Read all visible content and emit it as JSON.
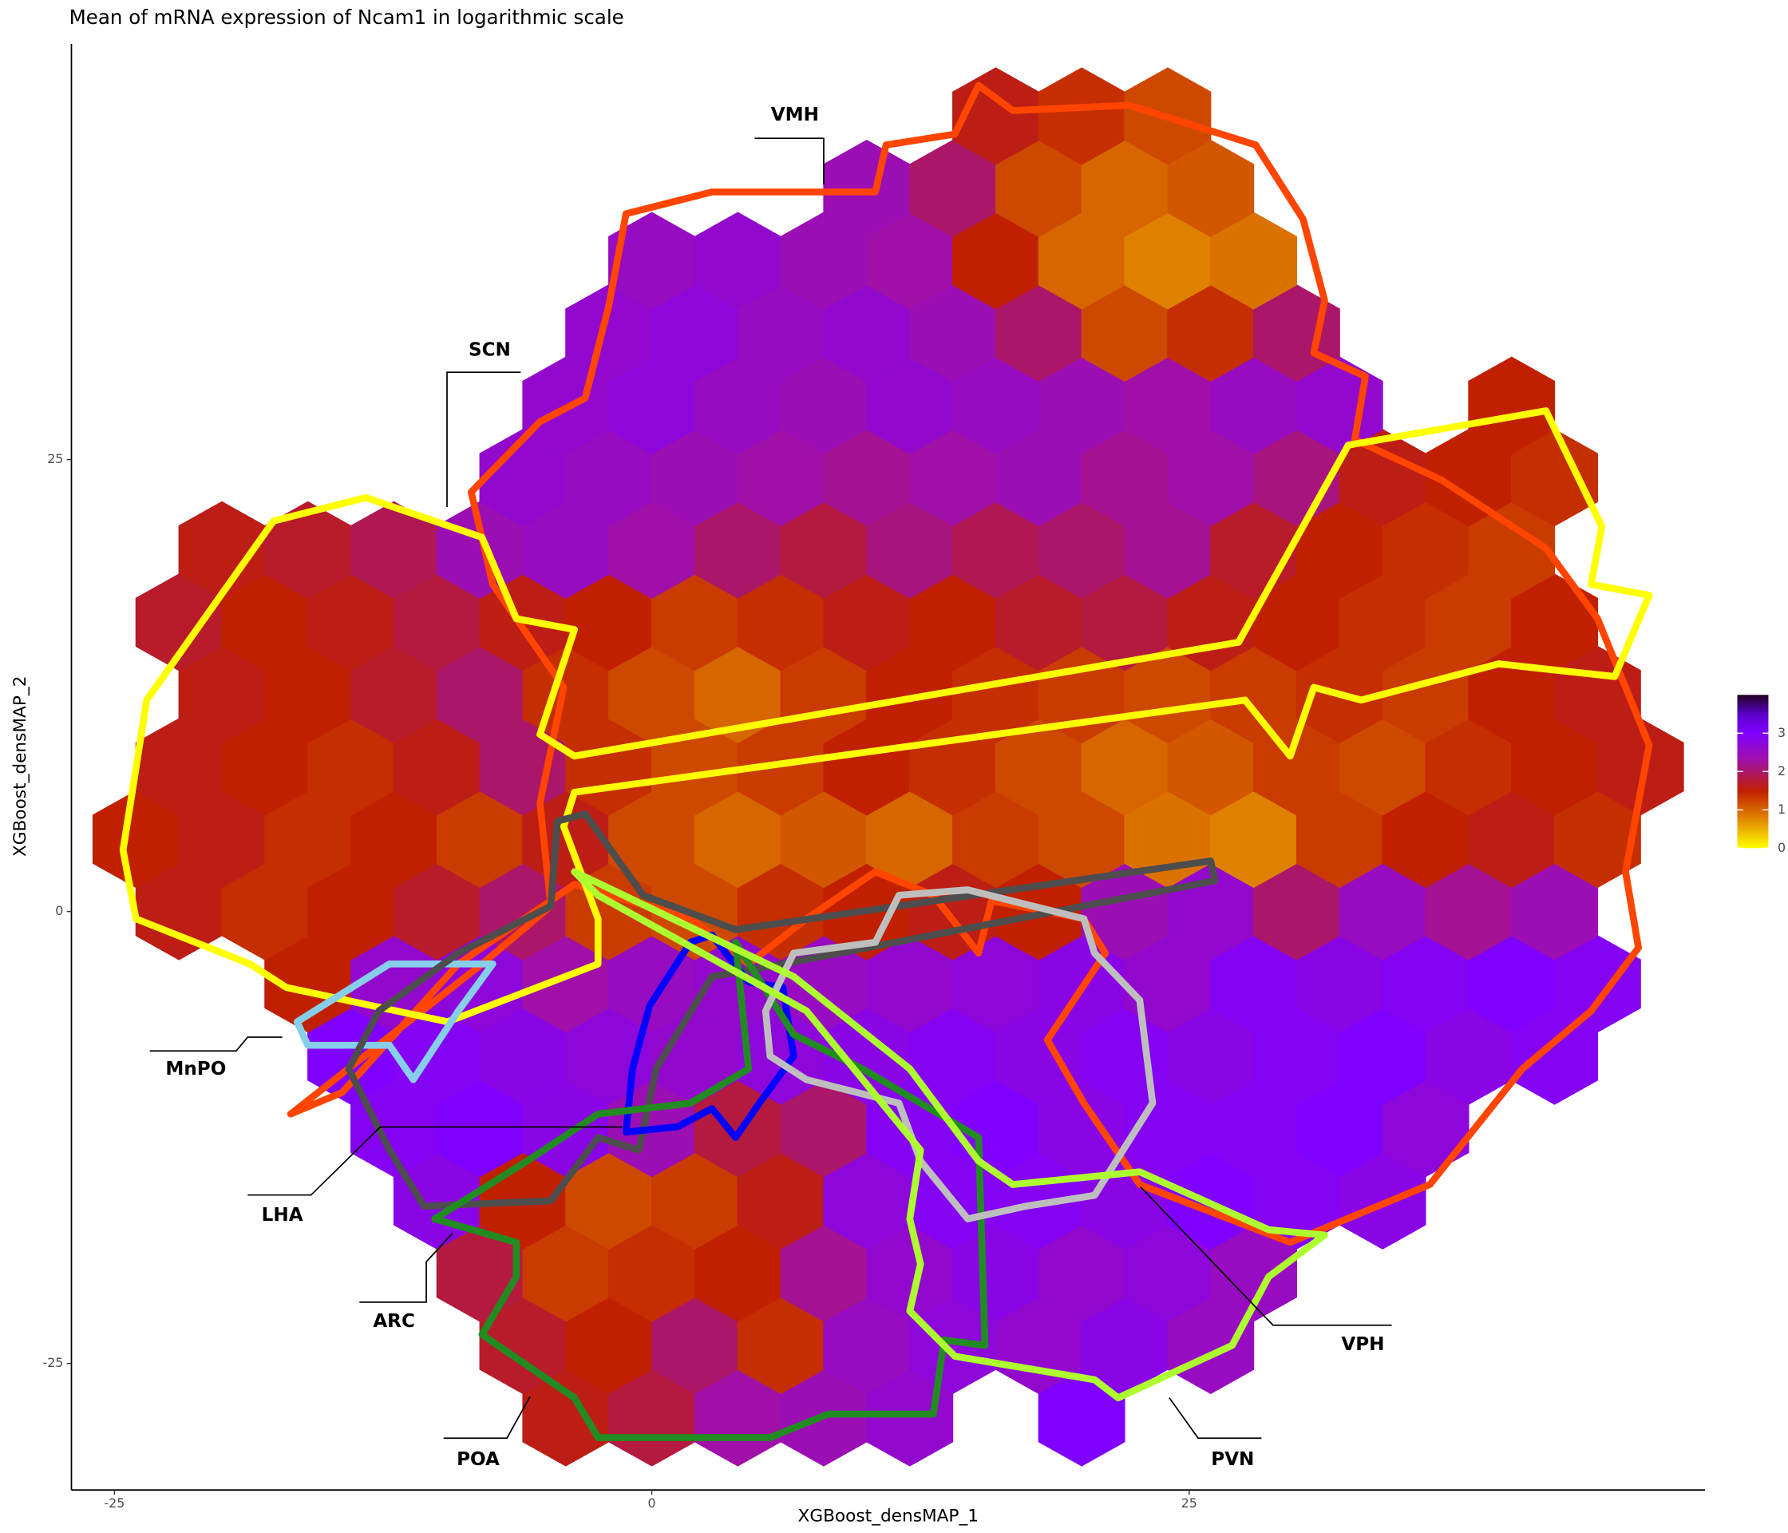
{
  "chart_data": {
    "type": "hexbin",
    "title": "Mean of mRNA expression of Ncam1 in logarithmic scale",
    "x_label": "XGBoost_densMAP_1",
    "y_label": "XGBoost_densMAP_2",
    "xlim": [
      -27,
      49
    ],
    "ylim": [
      -32,
      48
    ],
    "xticks": [
      -25,
      0,
      25
    ],
    "yticks": [
      -25,
      0,
      25
    ],
    "grid": false,
    "colorbar": {
      "lim": [
        0,
        4
      ],
      "ticks": [
        0,
        1,
        2,
        3
      ],
      "stops": [
        {
          "value": 0,
          "color": "#ffff00"
        },
        {
          "value": 0.8,
          "color": "#e08000"
        },
        {
          "value": 1.5,
          "color": "#c02000"
        },
        {
          "value": 2.3,
          "color": "#a010a8"
        },
        {
          "value": 3,
          "color": "#8000ff"
        },
        {
          "value": 3.5,
          "color": "#5a00c8"
        },
        {
          "value": 4,
          "color": "#200020"
        }
      ]
    },
    "hex": {
      "x": [
        -24,
        -20,
        -16,
        -12,
        -8,
        -4,
        0,
        4,
        8,
        12,
        16,
        20,
        24,
        28,
        32,
        36,
        40,
        44
      ],
      "x_odd": [
        -22,
        -18,
        -14,
        -10,
        -6,
        -2,
        2,
        6,
        10,
        14,
        18,
        22,
        26,
        30,
        34,
        38,
        42,
        46
      ],
      "y": [
        -28,
        -24,
        -20,
        -16,
        -12,
        -8,
        -4,
        0,
        4,
        8,
        12,
        16,
        20,
        24,
        28,
        32,
        36,
        40,
        44
      ],
      "values": [
        [
          null,
          null,
          null,
          null,
          null,
          1.6,
          1.8,
          2.3,
          2.4,
          2.6,
          null,
          3.0,
          null,
          null,
          null,
          null,
          null,
          null
        ],
        [
          null,
          null,
          null,
          null,
          1.7,
          1.5,
          2.0,
          1.4,
          2.5,
          2.7,
          2.6,
          2.8,
          2.5,
          null,
          null,
          null,
          null,
          null
        ],
        [
          null,
          null,
          null,
          null,
          1.8,
          1.3,
          1.4,
          1.5,
          2.2,
          2.6,
          2.8,
          2.6,
          2.7,
          2.5,
          null,
          null,
          null,
          null
        ],
        [
          null,
          null,
          null,
          2.8,
          1.5,
          1.2,
          1.3,
          1.6,
          2.7,
          2.9,
          2.9,
          2.8,
          3.0,
          2.9,
          2.8,
          null,
          null,
          null
        ],
        [
          null,
          null,
          null,
          2.9,
          3.0,
          2.8,
          2.4,
          1.8,
          2.0,
          2.9,
          3.0,
          2.8,
          2.9,
          2.9,
          3.0,
          2.7,
          null,
          null
        ],
        [
          null,
          null,
          3.0,
          2.9,
          2.8,
          2.7,
          2.6,
          2.7,
          2.8,
          2.9,
          2.8,
          2.9,
          2.8,
          2.9,
          3.0,
          2.8,
          2.9,
          null
        ],
        [
          null,
          null,
          1.5,
          2.6,
          2.7,
          2.3,
          2.5,
          2.6,
          2.5,
          2.6,
          2.7,
          2.8,
          2.6,
          2.9,
          2.8,
          2.9,
          3.0,
          2.9
        ],
        [
          1.6,
          1.4,
          1.5,
          1.7,
          2.0,
          1.3,
          1.2,
          1.4,
          1.5,
          1.6,
          1.5,
          2.4,
          2.6,
          2.0,
          2.5,
          2.2,
          2.4,
          null
        ],
        [
          1.5,
          1.6,
          1.4,
          1.5,
          1.3,
          1.6,
          1.2,
          1.0,
          1.1,
          1.0,
          1.3,
          1.2,
          0.9,
          0.8,
          1.3,
          1.5,
          1.6,
          1.4
        ],
        [
          1.6,
          1.5,
          1.4,
          1.6,
          2.0,
          1.4,
          1.2,
          1.3,
          1.5,
          1.4,
          1.2,
          1.0,
          1.1,
          1.3,
          1.2,
          1.4,
          1.5,
          1.6
        ],
        [
          null,
          1.6,
          1.5,
          1.7,
          2.0,
          1.4,
          1.2,
          1.0,
          1.3,
          1.5,
          1.4,
          1.3,
          1.2,
          1.3,
          1.4,
          1.3,
          1.5,
          1.6
        ],
        [
          1.7,
          1.5,
          1.6,
          1.8,
          1.6,
          1.5,
          1.3,
          1.4,
          1.6,
          1.5,
          1.7,
          1.8,
          1.6,
          1.5,
          1.4,
          1.3,
          1.5,
          null
        ],
        [
          null,
          1.6,
          1.7,
          1.9,
          2.4,
          2.5,
          2.3,
          2.0,
          1.8,
          2.1,
          1.9,
          2.0,
          2.2,
          1.7,
          1.5,
          1.4,
          1.3,
          null
        ],
        [
          null,
          null,
          null,
          null,
          2.6,
          2.5,
          2.4,
          2.3,
          2.2,
          2.3,
          2.4,
          2.2,
          2.3,
          2.1,
          1.6,
          1.5,
          1.4,
          null
        ],
        [
          null,
          null,
          null,
          null,
          null,
          2.6,
          2.7,
          2.5,
          2.4,
          2.6,
          2.5,
          2.4,
          2.3,
          2.5,
          2.6,
          null,
          1.5,
          null
        ],
        [
          null,
          null,
          null,
          null,
          null,
          2.6,
          2.7,
          2.5,
          2.6,
          2.4,
          2.0,
          1.2,
          1.4,
          2.0,
          null,
          null,
          null,
          null
        ],
        [
          null,
          null,
          null,
          null,
          null,
          null,
          2.5,
          2.6,
          2.4,
          2.3,
          1.5,
          1.0,
          0.8,
          0.9,
          null,
          null,
          null,
          null
        ],
        [
          null,
          null,
          null,
          null,
          null,
          null,
          null,
          null,
          2.4,
          2.0,
          1.2,
          1.0,
          1.1,
          null,
          null,
          null,
          null,
          null
        ],
        [
          null,
          null,
          null,
          null,
          null,
          null,
          null,
          null,
          null,
          null,
          1.6,
          1.4,
          1.2,
          null,
          null,
          null,
          null,
          null
        ]
      ]
    },
    "regions": [
      {
        "name": "VMH",
        "color": "#ff4500",
        "x": [
          -2.0,
          -1.2,
          2.8,
          10.4,
          10.9,
          14.1,
          15.2,
          16.8,
          22.2,
          28.1,
          30.3,
          31.3,
          30.8,
          33.2,
          32.7,
          36.7,
          41.6,
          44.0,
          46.4,
          45.3,
          45.9,
          43.7,
          40.5,
          36.2,
          29.7,
          22.7,
          20.1,
          18.4,
          21.1,
          20.1,
          15.8,
          15.2,
          13.1,
          10.4,
          7.2,
          4.5,
          1.8,
          -3.6,
          -9.0,
          -14.4,
          -16.8,
          -7.9,
          -4.7,
          -5.2,
          -4.1,
          -7.4,
          -8.4,
          -5.2,
          -3.1
        ],
        "y": [
          33.5,
          38.6,
          39.8,
          39.8,
          42.4,
          43.0,
          45.7,
          44.3,
          44.6,
          42.4,
          38.3,
          33.8,
          30.9,
          29.6,
          26.1,
          23.9,
          20.1,
          16.2,
          9.2,
          2.2,
          -2.0,
          -5.5,
          -8.7,
          -15.1,
          -18.3,
          -15.1,
          -10.6,
          -7.1,
          -2.3,
          -0.4,
          0.6,
          -2.3,
          0.9,
          2.2,
          -0.4,
          -2.9,
          -0.4,
          1.5,
          -2.9,
          -10.0,
          -11.2,
          -2.9,
          0.3,
          6.0,
          12.4,
          18.1,
          23.2,
          27.1,
          28.4
        ]
      },
      {
        "name": "SCN",
        "color": "#ffff00",
        "x": [
          -17.6,
          -13.3,
          -7.9,
          -6.3,
          -3.6,
          -5.2,
          -3.6,
          27.3,
          32.4,
          41.6,
          44.2,
          43.7,
          46.4,
          44.8,
          39.4,
          33.0,
          30.8,
          29.7,
          27.6,
          -3.6,
          -4.1,
          -2.5,
          -2.5,
          -9.5,
          -17.0,
          -18.7,
          -24.0,
          -24.6,
          -23.5
        ],
        "y": [
          21.6,
          22.9,
          20.7,
          16.2,
          15.6,
          9.8,
          8.6,
          14.9,
          25.8,
          27.7,
          21.3,
          18.1,
          17.5,
          13.0,
          13.7,
          11.7,
          12.4,
          8.6,
          11.7,
          6.6,
          4.7,
          -0.4,
          -2.9,
          -6.1,
          -4.2,
          -2.9,
          -0.4,
          3.4,
          11.7
        ]
      },
      {
        "name": "MnPO",
        "color": "#87ceeb",
        "x": [
          -16.5,
          -12.2,
          -7.4,
          -9.0,
          -11.1,
          -12.2,
          -16.0
        ],
        "y": [
          -6.1,
          -2.9,
          -2.9,
          -5.5,
          -9.3,
          -7.4,
          -7.4
        ]
      },
      {
        "name": "LHA",
        "color": "#4d4d4d",
        "x": [
          -4.4,
          -3.1,
          -0.4,
          3.9,
          26.0,
          26.2,
          6.1,
          2.8,
          0.2,
          -0.6,
          -2.5,
          -4.7,
          -10.6,
          -12.2,
          -14.1,
          -12.7,
          -9.0,
          -4.7
        ],
        "y": [
          5.0,
          5.4,
          0.9,
          -1.0,
          2.8,
          1.7,
          -2.9,
          -3.6,
          -8.7,
          -13.2,
          -12.5,
          -16.0,
          -16.3,
          -13.2,
          -8.7,
          -5.5,
          -2.3,
          0.3
        ]
      },
      {
        "name": "ARC",
        "color": "#0000ff",
        "x": [
          -1.2,
          -0.9,
          -0.1,
          1.8,
          2.8,
          4.5,
          6.1,
          6.6,
          5.0,
          3.9,
          2.8,
          1.2
        ],
        "y": [
          -12.2,
          -8.7,
          -5.2,
          -1.7,
          -1.3,
          -3.9,
          -4.2,
          -8.0,
          -10.6,
          -12.5,
          -10.9,
          -11.9
        ]
      },
      {
        "name": "POA",
        "color": "#228b22",
        "x": [
          -10.1,
          -5.8,
          -2.5,
          1.8,
          4.5,
          3.9,
          6.6,
          9.8,
          15.2,
          15.5,
          13.6,
          13.1,
          8.2,
          5.5,
          -2.5,
          -3.6,
          -7.9,
          -6.3,
          -6.3
        ],
        "y": [
          -17.0,
          -13.8,
          -11.2,
          -10.6,
          -8.7,
          -1.7,
          -6.8,
          -8.7,
          -12.5,
          -24.0,
          -23.7,
          -27.8,
          -27.8,
          -29.1,
          -29.1,
          -26.9,
          -23.4,
          -20.2,
          -18.3
        ]
      },
      {
        "name": "VPH",
        "color": "#bebebe",
        "x": [
          5.3,
          6.6,
          10.4,
          11.5,
          14.7,
          20.1,
          20.6,
          22.7,
          23.3,
          20.6,
          17.4,
          14.7,
          12.5,
          11.5,
          7.2,
          5.5
        ],
        "y": [
          -5.5,
          -2.3,
          -1.7,
          0.9,
          1.2,
          -0.4,
          -2.3,
          -4.9,
          -10.6,
          -15.7,
          -16.3,
          -17.0,
          -13.8,
          -10.6,
          -9.3,
          -8.0
        ]
      },
      {
        "name": "PVN",
        "color": "#adff2f",
        "x": [
          -3.6,
          6.6,
          12.0,
          15.2,
          16.8,
          22.7,
          28.7,
          31.3,
          28.7,
          27.0,
          21.7,
          20.6,
          14.1,
          12.0,
          12.5,
          12.0,
          12.5,
          7.2,
          -2.5
        ],
        "y": [
          2.2,
          -3.6,
          -8.7,
          -13.8,
          -15.1,
          -14.4,
          -17.6,
          -17.9,
          -20.2,
          -24.0,
          -26.9,
          -25.9,
          -24.6,
          -22.1,
          -19.5,
          -17.0,
          -13.2,
          -5.5,
          0.9
        ]
      }
    ]
  }
}
